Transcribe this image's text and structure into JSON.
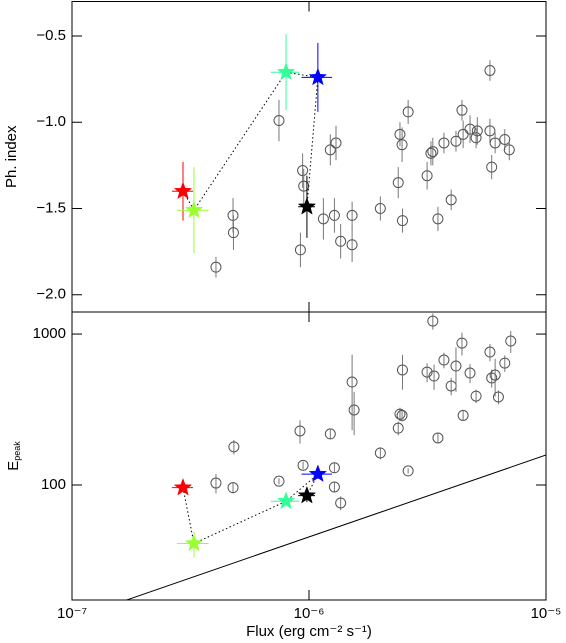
{
  "chart_data": [
    {
      "type": "scatter",
      "ylabel": "Ph. index",
      "xlim": [
        1e-07,
        1e-05
      ],
      "xlog": true,
      "ylim": [
        -2.1,
        -0.3
      ],
      "ylog": false,
      "xticks": [
        1e-07,
        1e-06,
        1e-05
      ],
      "xtick_labels": false,
      "yticks": [
        {
          "value": -2.0,
          "label": "−2.0"
        },
        {
          "value": -1.5,
          "label": "−1.5"
        },
        {
          "value": -1.0,
          "label": "−1.0"
        },
        {
          "value": -0.5,
          "label": "−0.5"
        }
      ],
      "series": [
        {
          "marker": "circle",
          "color": "#555555",
          "x": [
            4.05e-07,
            4.78e-07,
            4.8e-07,
            7.47e-07,
            9.2e-07,
            9.4e-07,
            9.5e-07,
            1.15e-06,
            1.23e-06,
            1.3e-06,
            1.28e-06,
            1.36e-06,
            1.52e-06,
            1.52e-06,
            2e-06,
            2.38e-06,
            2.42e-06,
            2.47e-06,
            2.48e-06,
            2.62e-06,
            3.15e-06,
            3.27e-06,
            3.33e-06,
            3.5e-06,
            3.71e-06,
            3.98e-06,
            4.17e-06,
            4.42e-06,
            4.47e-06,
            4.78e-06,
            5.07e-06,
            5.13e-06,
            5.8e-06,
            5.9e-06,
            6.1e-06,
            6.7e-06,
            7e-06,
            5.8e-06
          ],
          "values": [
            -1.84,
            -1.54,
            -1.64,
            -0.99,
            -1.74,
            -1.28,
            -1.37,
            -1.56,
            -1.16,
            -1.12,
            -1.54,
            -1.69,
            -1.54,
            -1.71,
            -1.5,
            -1.35,
            -1.07,
            -1.13,
            -1.57,
            -0.94,
            -1.31,
            -1.18,
            -1.17,
            -1.56,
            -1.12,
            -1.45,
            -1.11,
            -0.93,
            -1.07,
            -1.04,
            -1.09,
            -1.05,
            -1.05,
            -1.26,
            -1.12,
            -1.1,
            -1.16,
            -0.7
          ],
          "yerr": [
            0.06,
            0.1,
            0.1,
            0.12,
            0.1,
            0.1,
            0.1,
            0.12,
            0.09,
            0.1,
            0.1,
            0.1,
            0.08,
            0.1,
            0.07,
            0.09,
            0.07,
            0.1,
            0.07,
            0.07,
            0.08,
            0.07,
            0.08,
            0.07,
            0.06,
            0.06,
            0.06,
            0.06,
            0.08,
            0.08,
            0.06,
            0.08,
            0.07,
            0.07,
            0.06,
            0.06,
            0.06,
            0.06
          ]
        },
        {
          "marker": "star",
          "connect": "dotted",
          "colors": [
            "#ff0000",
            "#99ff33",
            "#33ff99",
            "#0000ff",
            "#000000"
          ],
          "x": [
            2.94e-07,
            3.27e-07,
            8e-07,
            1.09e-06,
            9.8e-07
          ],
          "values": [
            -1.4,
            -1.51,
            -0.71,
            -0.74,
            -1.49
          ],
          "yerr": [
            0.17,
            0.25,
            0.22,
            0.2,
            0.18
          ],
          "xerr": [
            3e-08,
            5e-08,
            1.1e-07,
            1.6e-07,
            8e-08
          ]
        }
      ]
    },
    {
      "type": "scatter",
      "ylabel": {
        "main": "E",
        "sub": "peak"
      },
      "xlabel": "Flux (erg cm⁻² s⁻¹)",
      "xlim": [
        1e-07,
        1e-05
      ],
      "xlog": true,
      "ylim": [
        17.3,
        1400
      ],
      "ylog": true,
      "xticks": [
        {
          "value": 1e-07,
          "label": "10⁻⁷"
        },
        {
          "value": 1e-06,
          "label": "10⁻⁶"
        },
        {
          "value": 1e-05,
          "label": "10⁻⁵"
        }
      ],
      "xtick_labels": true,
      "yticks": [
        100,
        1000
      ],
      "series": [
        {
          "marker": "circle",
          "color": "#555555",
          "x": [
            4.05e-07,
            4.78e-07,
            4.82e-07,
            7.47e-07,
            9.16e-07,
            9.44e-07,
            1.23e-06,
            1.28e-06,
            1.28e-06,
            1.36e-06,
            1.52e-06,
            1.55e-06,
            2e-06,
            2.38e-06,
            2.42e-06,
            2.47e-06,
            2.48e-06,
            2.62e-06,
            3.15e-06,
            3.33e-06,
            3.37e-06,
            3.5e-06,
            3.71e-06,
            3.98e-06,
            4.17e-06,
            4.42e-06,
            4.47e-06,
            4.78e-06,
            5.07e-06,
            5.8e-06,
            5.9e-06,
            6.1e-06,
            6.3e-06,
            6.7e-06,
            7.1e-06
          ],
          "values": [
            103,
            96,
            179,
            106,
            228,
            135,
            218,
            130,
            97,
            76,
            481,
            314,
            163,
            238,
            295,
            289,
            578,
            124,
            560,
            1219,
            527,
            205,
            673,
            453,
            614,
            871,
            289,
            552,
            388,
            760,
            512,
            535,
            383,
            642,
            899
          ],
          "yerr": [
            15,
            8,
            20,
            5,
            40,
            8,
            15,
            10,
            8,
            8,
            250,
            100,
            15,
            25,
            30,
            25,
            150,
            5,
            80,
            150,
            100,
            15,
            80,
            60,
            200,
            150,
            20,
            80,
            40,
            100,
            70,
            150,
            40,
            80,
            150
          ]
        },
        {
          "marker": "star",
          "connect": "dotted",
          "colors": [
            "#ff0000",
            "#99ff33",
            "#33ff99",
            "#0000ff",
            "#000000"
          ],
          "x": [
            2.94e-07,
            3.27e-07,
            8e-07,
            1.09e-06,
            9.8e-07
          ],
          "values": [
            96,
            41,
            78,
            118,
            85
          ],
          "yerr": [
            3,
            8,
            5,
            8,
            8
          ],
          "xerr": [
            3e-08,
            5e-08,
            1.1e-07,
            1.6e-07,
            8e-08
          ]
        },
        {
          "marker": "none",
          "line": "solid",
          "color": "#000000",
          "x": [
            1.7e-07,
            1e-05
          ],
          "values": [
            17.3,
            158
          ]
        }
      ]
    }
  ]
}
